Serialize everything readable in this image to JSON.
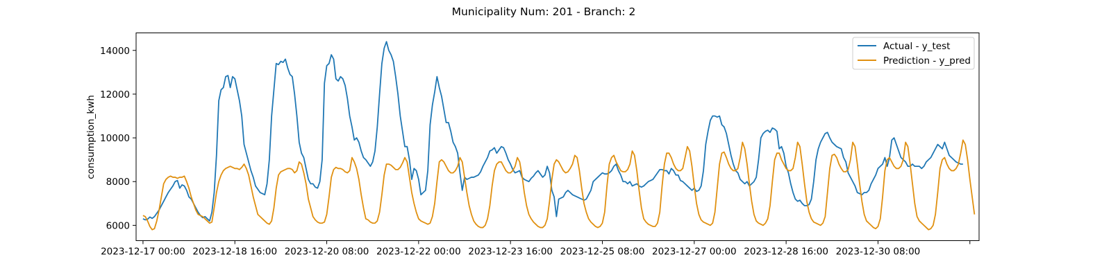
{
  "chart_data": {
    "type": "line",
    "title": "Municipality Num: 201 - Branch: 2",
    "xlabel": "",
    "ylabel": "consumption_kwh",
    "x_start": "2023-12-17 00:00",
    "x_end": "2023-12-31 11:00",
    "x_step": "1 hour",
    "x_ticks": [
      "2023-12-17 00:00",
      "2023-12-18 16:00",
      "2023-12-20 08:00",
      "2023-12-22 00:00",
      "2023-12-23 16:00",
      "2023-12-25 08:00",
      "2023-12-27 00:00",
      "2023-12-28 16:00",
      "2023-12-30 08:00",
      ""
    ],
    "x_lim": [
      "2023-12-16 21:00",
      "2024-01-01 04:00"
    ],
    "ylim": [
      5300,
      14800
    ],
    "y_ticks": [
      6000,
      8000,
      10000,
      12000,
      14000
    ],
    "grid": false,
    "legend_position": "top-right",
    "series": [
      {
        "name": "Actual - y_test",
        "color": "#1f77b4",
        "values": [
          6300,
          6250,
          6280,
          6380,
          6320,
          6400,
          6550,
          6700,
          6900,
          7100,
          7300,
          7500,
          7650,
          7800,
          8000,
          8050,
          7700,
          7850,
          7800,
          7600,
          7300,
          7200,
          7000,
          6800,
          6600,
          6450,
          6350,
          6400,
          6300,
          6200,
          6600,
          7500,
          9200,
          11700,
          12200,
          12300,
          12800,
          12850,
          12300,
          12800,
          12700,
          12200,
          11700,
          11000,
          9700,
          9300,
          8900,
          8500,
          8200,
          7800,
          7650,
          7500,
          7450,
          7400,
          7900,
          9000,
          11000,
          12200,
          13400,
          13350,
          13500,
          13450,
          13600,
          13200,
          12900,
          12800,
          12000,
          11000,
          9800,
          9300,
          9100,
          8600,
          8100,
          7900,
          7900,
          7750,
          7700,
          8000,
          9000,
          12500,
          13300,
          13400,
          13800,
          13600,
          12700,
          12600,
          12800,
          12700,
          12400,
          11800,
          11000,
          10500,
          9900,
          10000,
          9800,
          9400,
          9100,
          9000,
          8850,
          8700,
          8900,
          9400,
          10500,
          12000,
          13400,
          14100,
          14400,
          14000,
          13800,
          13500,
          12800,
          12000,
          11000,
          10300,
          9600,
          9600,
          9000,
          8100,
          8600,
          8500,
          8100,
          7400,
          7500,
          7600,
          8500,
          10600,
          11500,
          12100,
          12800,
          12300,
          11900,
          11300,
          10700,
          10700,
          10300,
          9800,
          9600,
          9300,
          8400,
          7600,
          8200,
          8100,
          8150,
          8200,
          8200,
          8250,
          8300,
          8450,
          8700,
          8900,
          9100,
          9400,
          9450,
          9550,
          9300,
          9450,
          9600,
          9550,
          9300,
          9000,
          8800,
          8550,
          8400,
          8450,
          8500,
          8200,
          8100,
          8050,
          8000,
          8150,
          8250,
          8400,
          8500,
          8350,
          8200,
          8300,
          8700,
          8400,
          7600,
          7300,
          6400,
          7200,
          7250,
          7300,
          7500,
          7600,
          7500,
          7400,
          7350,
          7300,
          7250,
          7200,
          7150,
          7200,
          7400,
          7600,
          8000,
          8100,
          8200,
          8300,
          8400,
          8350,
          8350,
          8400,
          8500,
          8700,
          8800,
          8500,
          8300,
          8000,
          8000,
          7900,
          8000,
          7800,
          7850,
          7900,
          7800,
          7750,
          7800,
          7900,
          8000,
          8050,
          8100,
          8250,
          8400,
          8550,
          8550,
          8500,
          8500,
          8350,
          8600,
          8500,
          8300,
          8300,
          8050,
          8000,
          7900,
          7800,
          7700,
          7600,
          7700,
          7550,
          7600,
          7800,
          8500,
          9700,
          10300,
          10800,
          11000,
          11000,
          10950,
          11000,
          10600,
          10500,
          10200,
          9700,
          9200,
          8800,
          8500,
          8400,
          8100,
          8000,
          7900,
          8000,
          7800,
          7900,
          8000,
          8200,
          9000,
          10000,
          10200,
          10300,
          10350,
          10250,
          10450,
          10400,
          10300,
          9500,
          9600,
          9300,
          8700,
          8400,
          7900,
          7500,
          7200,
          7100,
          7150,
          7000,
          6900,
          6900,
          6950,
          7200,
          8000,
          9000,
          9500,
          9800,
          10000,
          10200,
          10250,
          10000,
          9800,
          9700,
          9600,
          9550,
          9500,
          9100,
          8900,
          8400,
          8200,
          8000,
          7800,
          7500,
          7450,
          7400,
          7500,
          7500,
          7600,
          7900,
          8100,
          8300,
          8600,
          8700,
          8800,
          9100,
          8700,
          9100,
          9900,
          10000,
          9700,
          9400,
          9100,
          9000,
          8900,
          8700,
          8700,
          8800,
          8700,
          8700,
          8700,
          8600,
          8700,
          8900,
          9000,
          9100,
          9300,
          9500,
          9700,
          9600,
          9500,
          9800,
          9500,
          9200,
          9100,
          9000,
          8900,
          8850,
          8800,
          8800
        ]
      },
      {
        "name": "Prediction - y_pred",
        "color": "#e09010",
        "values": [
          6450,
          6400,
          6200,
          5950,
          5800,
          5850,
          6200,
          6700,
          7300,
          7900,
          8100,
          8200,
          8250,
          8200,
          8200,
          8150,
          8200,
          8200,
          8250,
          8000,
          7700,
          7300,
          7000,
          6700,
          6500,
          6450,
          6400,
          6300,
          6200,
          6100,
          6150,
          6800,
          7500,
          8000,
          8300,
          8500,
          8600,
          8650,
          8700,
          8650,
          8600,
          8600,
          8550,
          8650,
          8800,
          8600,
          8300,
          7800,
          7300,
          6900,
          6500,
          6400,
          6300,
          6200,
          6100,
          6050,
          6200,
          6800,
          7700,
          8300,
          8450,
          8500,
          8550,
          8600,
          8600,
          8550,
          8400,
          8500,
          8900,
          8800,
          8400,
          7900,
          7200,
          6800,
          6400,
          6250,
          6150,
          6100,
          6100,
          6150,
          6500,
          7300,
          8200,
          8550,
          8650,
          8600,
          8600,
          8550,
          8450,
          8400,
          8500,
          9100,
          8900,
          8600,
          8100,
          7400,
          6800,
          6300,
          6250,
          6150,
          6100,
          6100,
          6200,
          6600,
          7400,
          8300,
          8800,
          8800,
          8750,
          8650,
          8550,
          8550,
          8650,
          8850,
          9100,
          8900,
          8200,
          7500,
          7000,
          6600,
          6300,
          6200,
          6150,
          6100,
          6050,
          6100,
          6400,
          7000,
          8000,
          8900,
          9000,
          8900,
          8700,
          8500,
          8400,
          8400,
          8500,
          8700,
          9100,
          8900,
          8200,
          7500,
          6900,
          6500,
          6200,
          6050,
          5950,
          5900,
          5900,
          6000,
          6300,
          6900,
          7800,
          8500,
          8800,
          8900,
          8900,
          8700,
          8500,
          8400,
          8400,
          8500,
          8700,
          9100,
          8900,
          8300,
          7500,
          6900,
          6500,
          6300,
          6150,
          6050,
          5950,
          5900,
          5900,
          6000,
          6300,
          7100,
          8100,
          8800,
          9000,
          8900,
          8700,
          8500,
          8400,
          8450,
          8600,
          8800,
          9200,
          9100,
          8500,
          7700,
          7000,
          6600,
          6300,
          6150,
          6050,
          5950,
          5900,
          5950,
          6100,
          6600,
          7800,
          8800,
          9100,
          9200,
          8900,
          8700,
          8500,
          8450,
          8450,
          8550,
          8800,
          9400,
          9200,
          8500,
          7600,
          6800,
          6300,
          6150,
          6050,
          6000,
          5950,
          5950,
          6100,
          6600,
          7800,
          8800,
          9300,
          9300,
          9100,
          8800,
          8600,
          8500,
          8500,
          8600,
          9100,
          9600,
          9400,
          8700,
          7800,
          7000,
          6500,
          6250,
          6150,
          6100,
          6050,
          6000,
          6100,
          6600,
          7700,
          8800,
          9300,
          9350,
          9100,
          8800,
          8600,
          8500,
          8500,
          8600,
          9100,
          9800,
          9500,
          8800,
          7900,
          7100,
          6500,
          6200,
          6100,
          6050,
          6000,
          6100,
          6300,
          6900,
          8000,
          9000,
          9300,
          9300,
          9000,
          8800,
          8600,
          8500,
          8500,
          8600,
          9100,
          9800,
          9600,
          8800,
          7900,
          7100,
          6600,
          6300,
          6150,
          6100,
          6050,
          6000,
          6100,
          6400,
          7500,
          8600,
          9200,
          9250,
          9100,
          8800,
          8600,
          8450,
          8450,
          8550,
          9000,
          9800,
          9600,
          8800,
          7900,
          7100,
          6500,
          6200,
          6100,
          6000,
          5900,
          5850,
          5950,
          6300,
          7300,
          8500,
          9000,
          9100,
          8900,
          8700,
          8600,
          8600,
          8700,
          9000,
          9800,
          9600,
          8800,
          7900,
          7000,
          6400,
          6200,
          6100,
          6000,
          5900,
          5800,
          5850,
          6000,
          6500,
          7500,
          8600,
          9000,
          9100,
          8800,
          8600,
          8500,
          8500,
          8600,
          8800,
          9300,
          9900,
          9700,
          9000,
          8100,
          7300,
          6500
        ]
      }
    ]
  }
}
